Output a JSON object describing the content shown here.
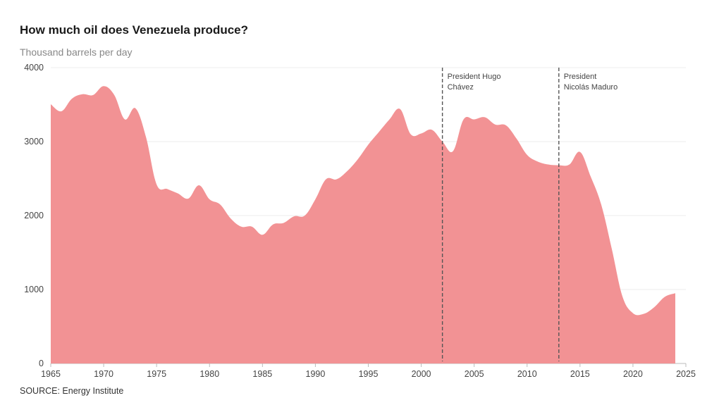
{
  "chart_data": {
    "type": "area",
    "title": "How much oil does Venezuela produce?",
    "subtitle": "Thousand barrels per day",
    "source": "SOURCE: Energy Institute",
    "xlim": [
      1965,
      2025
    ],
    "ylim": [
      0,
      4000
    ],
    "xticks": [
      1965,
      1970,
      1975,
      1980,
      1985,
      1990,
      1995,
      2000,
      2005,
      2010,
      2015,
      2020,
      2025
    ],
    "yticks": [
      0,
      1000,
      2000,
      3000,
      4000
    ],
    "grid": true,
    "color": "#f29294",
    "x": [
      1965,
      1966,
      1967,
      1968,
      1969,
      1970,
      1971,
      1972,
      1973,
      1974,
      1975,
      1976,
      1977,
      1978,
      1979,
      1980,
      1981,
      1982,
      1983,
      1984,
      1985,
      1986,
      1987,
      1988,
      1989,
      1990,
      1991,
      1992,
      1993,
      1994,
      1995,
      1996,
      1997,
      1998,
      1999,
      2000,
      2001,
      2002,
      2003,
      2004,
      2005,
      2006,
      2007,
      2008,
      2009,
      2010,
      2011,
      2012,
      2013,
      2014,
      2015,
      2016,
      2017,
      2018,
      2019,
      2020,
      2021,
      2022,
      2023,
      2024
    ],
    "values": [
      3505,
      3410,
      3580,
      3640,
      3630,
      3750,
      3630,
      3300,
      3450,
      3060,
      2420,
      2360,
      2300,
      2230,
      2410,
      2220,
      2150,
      1960,
      1850,
      1850,
      1740,
      1880,
      1900,
      1990,
      2000,
      2220,
      2490,
      2490,
      2600,
      2760,
      2960,
      3130,
      3300,
      3440,
      3100,
      3110,
      3160,
      3000,
      2870,
      3300,
      3300,
      3330,
      3230,
      3220,
      3040,
      2820,
      2730,
      2690,
      2680,
      2690,
      2860,
      2530,
      2150,
      1550,
      910,
      680,
      670,
      760,
      900,
      950
    ],
    "annotations": [
      {
        "x": 2002,
        "lines": [
          "President Hugo",
          "Chávez"
        ]
      },
      {
        "x": 2013,
        "lines": [
          "President",
          "Nicolás Maduro"
        ]
      }
    ]
  }
}
